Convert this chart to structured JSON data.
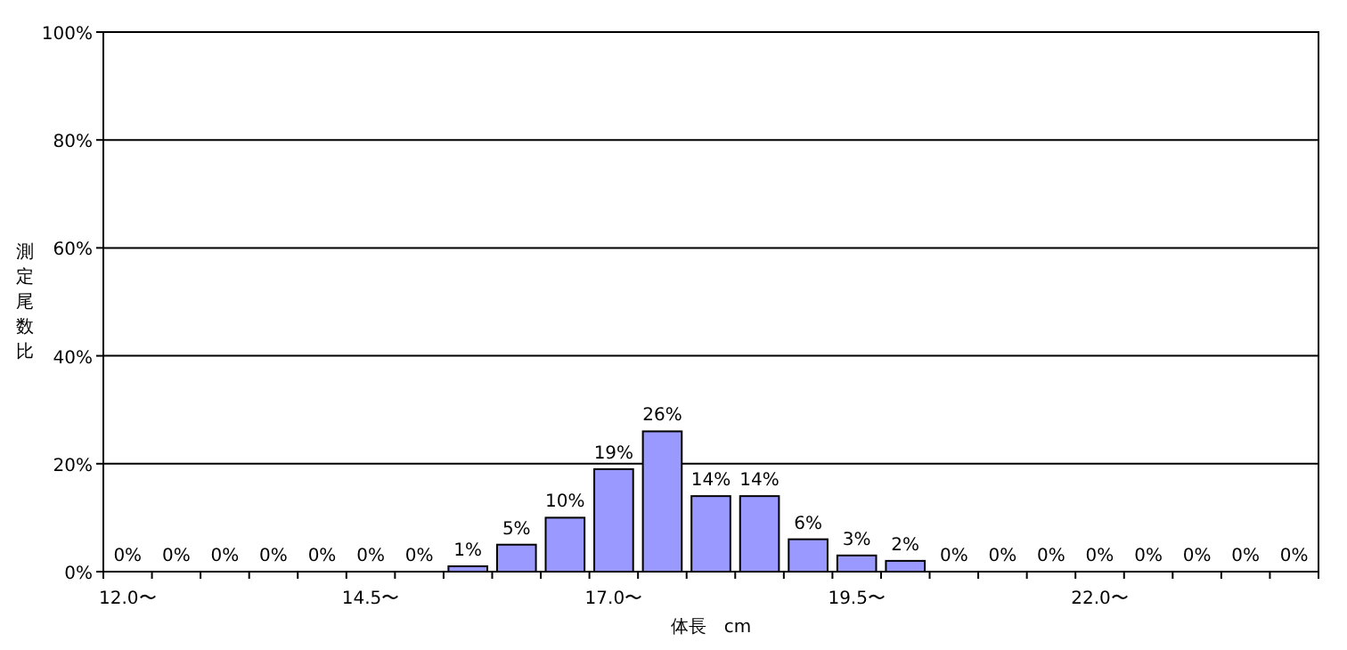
{
  "chart_data": {
    "type": "bar",
    "xlabel": "体長　cm",
    "ylabel": "測定尾数比",
    "categories": [
      "12.0〜",
      null,
      null,
      null,
      null,
      "14.5〜",
      null,
      null,
      null,
      null,
      "17.0〜",
      null,
      null,
      null,
      null,
      "19.5〜",
      null,
      null,
      null,
      null,
      "22.0〜",
      null,
      null,
      null,
      null
    ],
    "values": [
      0,
      0,
      0,
      0,
      0,
      0,
      0,
      1,
      5,
      10,
      19,
      26,
      14,
      14,
      6,
      3,
      2,
      0,
      0,
      0,
      0,
      0,
      0,
      0,
      0
    ],
    "color": "#9999ff",
    "ylim": [
      0,
      100
    ],
    "yticks": [
      {
        "value": 0,
        "label": "0%"
      },
      {
        "value": 20,
        "label": "20%"
      },
      {
        "value": 40,
        "label": "40%"
      },
      {
        "value": 60,
        "label": "60%"
      },
      {
        "value": 80,
        "label": "80%"
      },
      {
        "value": 100,
        "label": "100%"
      }
    ],
    "value_labels": [
      "0%",
      "0%",
      "0%",
      "0%",
      "0%",
      "0%",
      "0%",
      "1%",
      "5%",
      "10%",
      "19%",
      "26%",
      "14%",
      "14%",
      "6%",
      "3%",
      "2%",
      "0%",
      "0%",
      "0%",
      "0%",
      "0%",
      "0%",
      "0%",
      "0%"
    ],
    "grid": "y"
  }
}
